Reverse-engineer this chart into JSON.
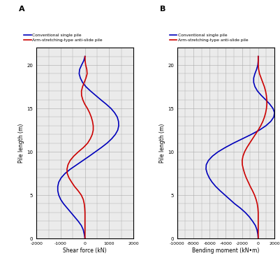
{
  "title_A": "A",
  "title_B": "B",
  "legend_blue": "Conventional single pile",
  "legend_red": "Arm-stretching-type anti-slide pile",
  "xlabel_A": "Shear force (kN)",
  "xlabel_B": "Bending moment (kN•m)",
  "ylabel": "Pile length (m)",
  "ylim": [
    0,
    22
  ],
  "xlim_A": [
    -2000,
    2000
  ],
  "xlim_B": [
    -10000,
    2000
  ],
  "xticks_A": [
    -2000,
    -1000,
    0,
    1000,
    2000
  ],
  "xticks_B": [
    -10000,
    -8000,
    -6000,
    -4000,
    -2000,
    0,
    2000
  ],
  "yticks": [
    0,
    5,
    10,
    15,
    20
  ],
  "blue_color": "#0000BB",
  "red_color": "#CC0000",
  "grid_color": "#AAAAAA",
  "bg_color": "#EBEBEB",
  "line_width": 1.2,
  "shear_blue_y": [
    0,
    0.5,
    1,
    1.5,
    2,
    2.5,
    3,
    3.5,
    4,
    4.5,
    5,
    5.5,
    6,
    6.5,
    7,
    7.5,
    8,
    8.5,
    9,
    9.5,
    10,
    10.5,
    11,
    11.5,
    12,
    12.5,
    13,
    13.5,
    14,
    14.5,
    15,
    15.5,
    16,
    16.5,
    17,
    17.5,
    18,
    18.5,
    19,
    19.5,
    20,
    20.5,
    21
  ],
  "shear_blue_x": [
    0,
    -30,
    -70,
    -150,
    -280,
    -430,
    -580,
    -730,
    -880,
    -1000,
    -1080,
    -1120,
    -1120,
    -1080,
    -980,
    -820,
    -600,
    -340,
    -80,
    180,
    430,
    680,
    910,
    1100,
    1250,
    1350,
    1390,
    1380,
    1330,
    1220,
    1070,
    870,
    650,
    440,
    230,
    40,
    -100,
    -190,
    -240,
    -220,
    -140,
    -50,
    0
  ],
  "shear_red_y": [
    0,
    0.5,
    1,
    1.5,
    2,
    2.5,
    3,
    3.5,
    4,
    4.5,
    5,
    5.5,
    6,
    6.5,
    7,
    7.5,
    8,
    8.5,
    9,
    9.5,
    10,
    10.5,
    11,
    11.5,
    12,
    12.5,
    13,
    13.5,
    14,
    14.5,
    15,
    15.5,
    16,
    16.5,
    17,
    17.5,
    18,
    18.5,
    19,
    19.5,
    20,
    20.5,
    21
  ],
  "shear_red_x": [
    0,
    0,
    0,
    0,
    0,
    0,
    0,
    -10,
    -30,
    -70,
    -150,
    -280,
    -430,
    -550,
    -660,
    -730,
    -740,
    -700,
    -610,
    -460,
    -270,
    -60,
    110,
    220,
    300,
    340,
    340,
    310,
    260,
    190,
    100,
    -10,
    -90,
    -140,
    -145,
    -100,
    -30,
    40,
    90,
    75,
    30,
    5,
    0
  ],
  "moment_blue_y": [
    0,
    0.5,
    1,
    1.5,
    2,
    2.5,
    3,
    3.5,
    4,
    4.5,
    5,
    5.5,
    6,
    6.5,
    7,
    7.5,
    8,
    8.5,
    9,
    9.5,
    10,
    10.5,
    11,
    11.5,
    12,
    12.5,
    13,
    13.5,
    14,
    14.5,
    15,
    15.5,
    16,
    16.5,
    17,
    17.5,
    18,
    18.5,
    19,
    19.5,
    20,
    20.5,
    21
  ],
  "moment_blue_x": [
    0,
    -50,
    -150,
    -350,
    -700,
    -1100,
    -1600,
    -2200,
    -2900,
    -3500,
    -4100,
    -4700,
    -5250,
    -5700,
    -6050,
    -6300,
    -6450,
    -6420,
    -6150,
    -5650,
    -4950,
    -4050,
    -3050,
    -1950,
    -850,
    150,
    950,
    1550,
    1920,
    2020,
    1820,
    1420,
    920,
    380,
    -90,
    -400,
    -560,
    -560,
    -410,
    -200,
    -50,
    0,
    0
  ],
  "moment_red_y": [
    0,
    0.5,
    1,
    1.5,
    2,
    2.5,
    3,
    3.5,
    4,
    4.5,
    5,
    5.5,
    6,
    6.5,
    7,
    7.5,
    8,
    8.5,
    9,
    9.5,
    10,
    10.5,
    11,
    11.5,
    12,
    12.5,
    13,
    13.5,
    14,
    14.5,
    15,
    15.5,
    16,
    16.5,
    17,
    17.5,
    18,
    18.5,
    19,
    19.5,
    20,
    20.5,
    21
  ],
  "moment_red_x": [
    0,
    0,
    0,
    0,
    0,
    0,
    0,
    -40,
    -120,
    -260,
    -450,
    -700,
    -980,
    -1230,
    -1480,
    -1680,
    -1840,
    -1960,
    -1980,
    -1880,
    -1680,
    -1390,
    -1050,
    -700,
    -350,
    0,
    310,
    570,
    770,
    920,
    1020,
    1070,
    1060,
    1010,
    910,
    760,
    560,
    360,
    160,
    55,
    10,
    0,
    0
  ]
}
